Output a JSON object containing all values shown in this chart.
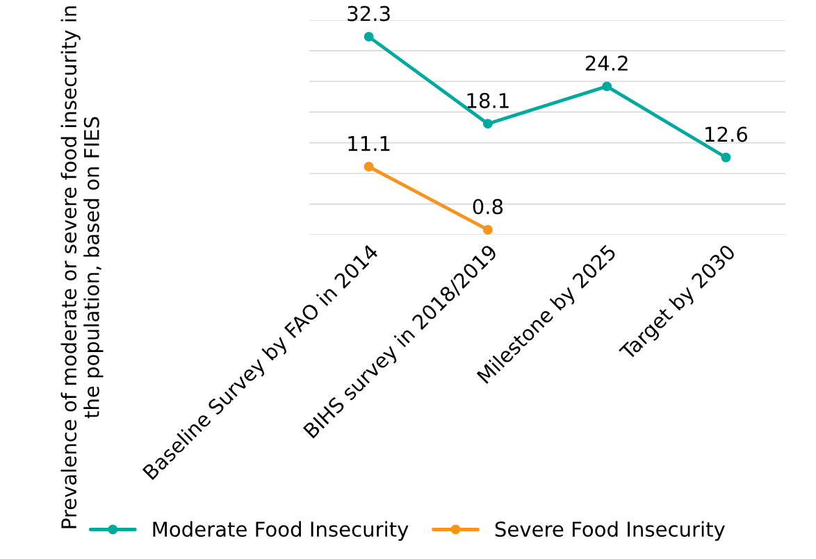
{
  "chart_data": {
    "type": "line",
    "ylabel": "Prevalence of moderate or severe food insecurity in the population, based on FIES",
    "categories": [
      "Baseline Survey by FAO in 2014",
      "BIHS survey in 2018/2019",
      "Milestone by 2025",
      "Target by 2030"
    ],
    "series": [
      {
        "name": "Moderate Food Insecurity",
        "color": "#00a99d",
        "values": [
          32.3,
          18.1,
          24.2,
          12.6
        ]
      },
      {
        "name": "Severe Food Insecurity",
        "color": "#f7931e",
        "values": [
          11.1,
          0.8,
          null,
          null
        ]
      }
    ],
    "ylim": [
      0,
      35
    ],
    "yticks": [
      {
        "value": 0,
        "label": null
      },
      {
        "value": 5,
        "label": null
      },
      {
        "value": 10,
        "label": null
      },
      {
        "value": 15,
        "label": null
      },
      {
        "value": 20,
        "label": null
      },
      {
        "value": 25,
        "label": null
      },
      {
        "value": 30,
        "label": null
      },
      {
        "value": 35,
        "label": null
      }
    ],
    "tick_labels": "x",
    "grid": "y",
    "legend": "bottom",
    "marker": "circle",
    "line_style": "solid",
    "data_labels": true
  }
}
